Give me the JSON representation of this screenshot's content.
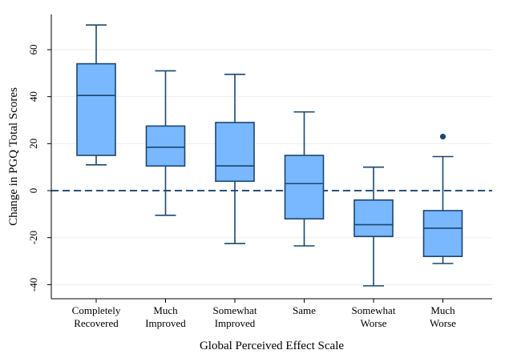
{
  "chart_data": {
    "type": "box",
    "xlabel": "Global Perceived Effect Scale",
    "ylabel": "Change in PGQ Total Scores",
    "ylim": [
      -46,
      75
    ],
    "yticks": [
      -40,
      -20,
      0,
      20,
      40,
      60
    ],
    "grid": true,
    "reference_line": 0,
    "box_color": "#79b7ff",
    "line_color": "#1a476f",
    "categories": [
      {
        "lines": [
          "Completely",
          "Recovered"
        ]
      },
      {
        "lines": [
          "Much",
          "Improved"
        ]
      },
      {
        "lines": [
          "Somewhat",
          "Improved"
        ]
      },
      {
        "lines": [
          "Same"
        ]
      },
      {
        "lines": [
          "Somewhat",
          "Worse"
        ]
      },
      {
        "lines": [
          "Much",
          "Worse"
        ]
      }
    ],
    "boxes": [
      {
        "whisker_low": 11,
        "q1": 15,
        "median": 40.5,
        "q3": 54,
        "whisker_high": 70.5,
        "outliers": []
      },
      {
        "whisker_low": -10.5,
        "q1": 10.5,
        "median": 18.5,
        "q3": 27.5,
        "whisker_high": 51,
        "outliers": []
      },
      {
        "whisker_low": -22.5,
        "q1": 4,
        "median": 10.5,
        "q3": 29,
        "whisker_high": 49.5,
        "outliers": []
      },
      {
        "whisker_low": -23.5,
        "q1": -12,
        "median": 3,
        "q3": 15,
        "whisker_high": 33.5,
        "outliers": []
      },
      {
        "whisker_low": -40.5,
        "q1": -19.5,
        "median": -14.5,
        "q3": -4,
        "whisker_high": 10,
        "outliers": []
      },
      {
        "whisker_low": -31,
        "q1": -28,
        "median": -16,
        "q3": -8.5,
        "whisker_high": 14.5,
        "outliers": [
          23
        ]
      }
    ]
  }
}
